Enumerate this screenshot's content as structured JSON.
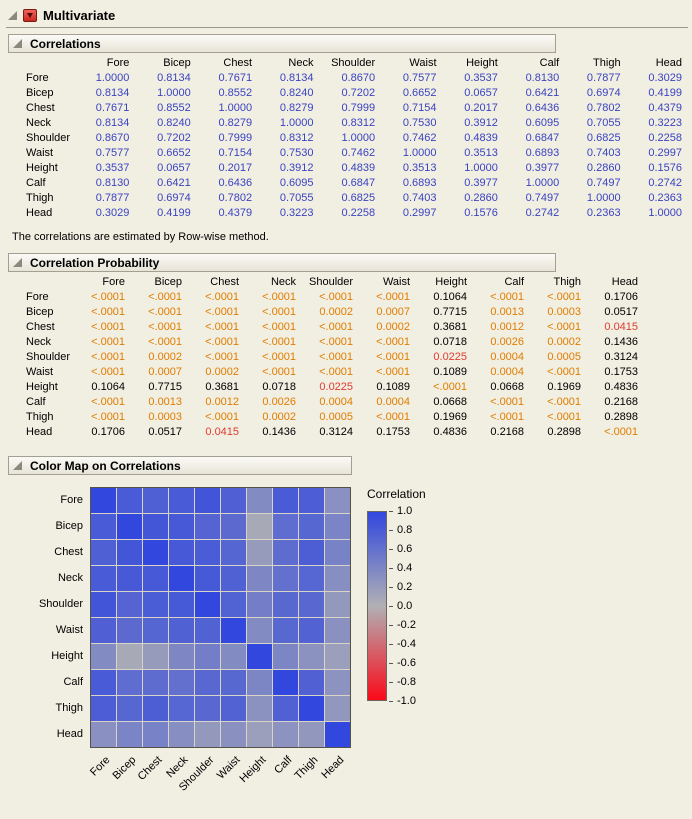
{
  "title": "Multivariate",
  "variables": [
    "Fore",
    "Bicep",
    "Chest",
    "Neck",
    "Shoulder",
    "Waist",
    "Height",
    "Calf",
    "Thigh",
    "Head"
  ],
  "correlations_section": {
    "title": "Correlations",
    "note": "The correlations are estimated by Row-wise method."
  },
  "probability_section": {
    "title": "Correlation Probability"
  },
  "colormap_section": {
    "title": "Color Map on Correlations",
    "legend_title": "Correlation",
    "legend_ticks": [
      "1.0",
      "0.8",
      "0.6",
      "0.4",
      "0.2",
      "0.0",
      "-0.2",
      "-0.4",
      "-0.6",
      "-0.8",
      "-1.0"
    ]
  },
  "matrices": {
    "correlations": [
      [
        "1.0000",
        "0.8134",
        "0.7671",
        "0.8134",
        "0.8670",
        "0.7577",
        "0.3537",
        "0.8130",
        "0.7877",
        "0.3029"
      ],
      [
        "0.8134",
        "1.0000",
        "0.8552",
        "0.8240",
        "0.7202",
        "0.6652",
        "0.0657",
        "0.6421",
        "0.6974",
        "0.4199"
      ],
      [
        "0.7671",
        "0.8552",
        "1.0000",
        "0.8279",
        "0.7999",
        "0.7154",
        "0.2017",
        "0.6436",
        "0.7802",
        "0.4379"
      ],
      [
        "0.8134",
        "0.8240",
        "0.8279",
        "1.0000",
        "0.8312",
        "0.7530",
        "0.3912",
        "0.6095",
        "0.7055",
        "0.3223"
      ],
      [
        "0.8670",
        "0.7202",
        "0.7999",
        "0.8312",
        "1.0000",
        "0.7462",
        "0.4839",
        "0.6847",
        "0.6825",
        "0.2258"
      ],
      [
        "0.7577",
        "0.6652",
        "0.7154",
        "0.7530",
        "0.7462",
        "1.0000",
        "0.3513",
        "0.6893",
        "0.7403",
        "0.2997"
      ],
      [
        "0.3537",
        "0.0657",
        "0.2017",
        "0.3912",
        "0.4839",
        "0.3513",
        "1.0000",
        "0.3977",
        "0.2860",
        "0.1576"
      ],
      [
        "0.8130",
        "0.6421",
        "0.6436",
        "0.6095",
        "0.6847",
        "0.6893",
        "0.3977",
        "1.0000",
        "0.7497",
        "0.2742"
      ],
      [
        "0.7877",
        "0.6974",
        "0.7802",
        "0.7055",
        "0.6825",
        "0.7403",
        "0.2860",
        "0.7497",
        "1.0000",
        "0.2363"
      ],
      [
        "0.3029",
        "0.4199",
        "0.4379",
        "0.3223",
        "0.2258",
        "0.2997",
        "0.1576",
        "0.2742",
        "0.2363",
        "1.0000"
      ]
    ],
    "probabilities": [
      [
        "<.0001",
        "<.0001",
        "<.0001",
        "<.0001",
        "<.0001",
        "<.0001",
        "0.1064",
        "<.0001",
        "<.0001",
        "0.1706"
      ],
      [
        "<.0001",
        "<.0001",
        "<.0001",
        "<.0001",
        "0.0002",
        "0.0007",
        "0.7715",
        "0.0013",
        "0.0003",
        "0.0517"
      ],
      [
        "<.0001",
        "<.0001",
        "<.0001",
        "<.0001",
        "<.0001",
        "0.0002",
        "0.3681",
        "0.0012",
        "<.0001",
        "0.0415"
      ],
      [
        "<.0001",
        "<.0001",
        "<.0001",
        "<.0001",
        "<.0001",
        "<.0001",
        "0.0718",
        "0.0026",
        "0.0002",
        "0.1436"
      ],
      [
        "<.0001",
        "0.0002",
        "<.0001",
        "<.0001",
        "<.0001",
        "<.0001",
        "0.0225",
        "0.0004",
        "0.0005",
        "0.3124"
      ],
      [
        "<.0001",
        "0.0007",
        "0.0002",
        "<.0001",
        "<.0001",
        "<.0001",
        "0.1089",
        "0.0004",
        "<.0001",
        "0.1753"
      ],
      [
        "0.1064",
        "0.7715",
        "0.3681",
        "0.0718",
        "0.0225",
        "0.1089",
        "<.0001",
        "0.0668",
        "0.1969",
        "0.4836"
      ],
      [
        "<.0001",
        "0.0013",
        "0.0012",
        "0.0026",
        "0.0004",
        "0.0004",
        "0.0668",
        "<.0001",
        "<.0001",
        "0.2168"
      ],
      [
        "<.0001",
        "0.0003",
        "<.0001",
        "0.0002",
        "0.0005",
        "<.0001",
        "0.1969",
        "<.0001",
        "<.0001",
        "0.2898"
      ],
      [
        "0.1706",
        "0.0517",
        "0.0415",
        "0.1436",
        "0.3124",
        "0.1753",
        "0.4836",
        "0.2168",
        "0.2898",
        "<.0001"
      ]
    ]
  },
  "colors": {
    "correlation_text": "#3a43c2",
    "significant_text": "#e07d00",
    "moderate_text": "#e03c30",
    "heatmap_positive": "#3147de",
    "heatmap_neutral": "#b0b0b4",
    "heatmap_negative": "#fb0a19"
  },
  "chart_data": {
    "type": "heatmap",
    "title": "Color Map on Correlations",
    "x_categories": [
      "Fore",
      "Bicep",
      "Chest",
      "Neck",
      "Shoulder",
      "Waist",
      "Height",
      "Calf",
      "Thigh",
      "Head"
    ],
    "y_categories": [
      "Fore",
      "Bicep",
      "Chest",
      "Neck",
      "Shoulder",
      "Waist",
      "Height",
      "Calf",
      "Thigh",
      "Head"
    ],
    "values": [
      [
        1.0,
        0.8134,
        0.7671,
        0.8134,
        0.867,
        0.7577,
        0.3537,
        0.813,
        0.7877,
        0.3029
      ],
      [
        0.8134,
        1.0,
        0.8552,
        0.824,
        0.7202,
        0.6652,
        0.0657,
        0.6421,
        0.6974,
        0.4199
      ],
      [
        0.7671,
        0.8552,
        1.0,
        0.8279,
        0.7999,
        0.7154,
        0.2017,
        0.6436,
        0.7802,
        0.4379
      ],
      [
        0.8134,
        0.824,
        0.8279,
        1.0,
        0.8312,
        0.753,
        0.3912,
        0.6095,
        0.7055,
        0.3223
      ],
      [
        0.867,
        0.7202,
        0.7999,
        0.8312,
        1.0,
        0.7462,
        0.4839,
        0.6847,
        0.6825,
        0.2258
      ],
      [
        0.7577,
        0.6652,
        0.7154,
        0.753,
        0.7462,
        1.0,
        0.3513,
        0.6893,
        0.7403,
        0.2997
      ],
      [
        0.3537,
        0.0657,
        0.2017,
        0.3912,
        0.4839,
        0.3513,
        1.0,
        0.3977,
        0.286,
        0.1576
      ],
      [
        0.813,
        0.6421,
        0.6436,
        0.6095,
        0.6847,
        0.6893,
        0.3977,
        1.0,
        0.7497,
        0.2742
      ],
      [
        0.7877,
        0.6974,
        0.7802,
        0.7055,
        0.6825,
        0.7403,
        0.286,
        0.7497,
        1.0,
        0.2363
      ],
      [
        0.3029,
        0.4199,
        0.4379,
        0.3223,
        0.2258,
        0.2997,
        0.1576,
        0.2742,
        0.2363,
        1.0
      ]
    ],
    "legend": {
      "title": "Correlation",
      "range": [
        -1.0,
        1.0
      ],
      "ticks": [
        1.0,
        0.8,
        0.6,
        0.4,
        0.2,
        0.0,
        -0.2,
        -0.4,
        -0.6,
        -0.8,
        -1.0
      ],
      "position": "right"
    }
  }
}
